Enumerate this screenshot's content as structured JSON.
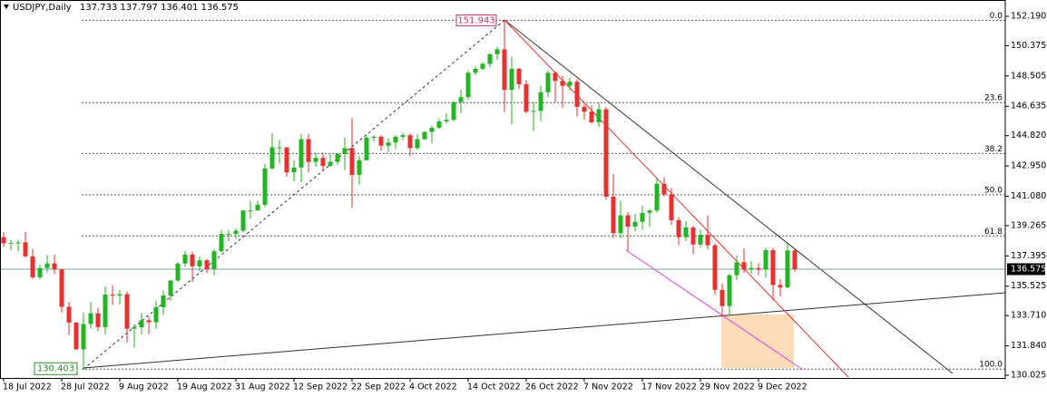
{
  "chart_data": {
    "type": "candlestick",
    "title": "USDJPY,Daily",
    "header_ohlc": "137.733 137.797 136.401 136.575",
    "categories": [
      "18 Jul 2022",
      null,
      null,
      null,
      null,
      null,
      null,
      null,
      "28 Jul 2022",
      null,
      null,
      null,
      null,
      null,
      null,
      null,
      "9 Aug 2022",
      null,
      null,
      null,
      null,
      null,
      null,
      null,
      "19 Aug 2022",
      null,
      null,
      null,
      null,
      null,
      null,
      null,
      "31 Aug 2022",
      null,
      null,
      null,
      null,
      null,
      null,
      null,
      "12 Sep 2022",
      null,
      null,
      null,
      null,
      null,
      null,
      null,
      "22 Sep 2022",
      null,
      null,
      null,
      null,
      null,
      null,
      null,
      "4 Oct 2022",
      null,
      null,
      null,
      null,
      null,
      null,
      null,
      "14 Oct 2022",
      null,
      null,
      null,
      null,
      null,
      null,
      null,
      "26 Oct 2022",
      null,
      null,
      null,
      null,
      null,
      null,
      null,
      "7 Nov 2022",
      null,
      null,
      null,
      null,
      null,
      null,
      null,
      "17 Nov 2022",
      null,
      null,
      null,
      null,
      null,
      null,
      null,
      "29 Nov 2022",
      null,
      null,
      null,
      null,
      null,
      null,
      null,
      "9 Dec 2022",
      null,
      null,
      null,
      null,
      null
    ],
    "open": [
      138.55,
      138.17,
      138.2,
      138.23,
      137.37,
      136.08,
      136.65,
      136.93,
      136.56,
      134.25,
      133.28,
      131.62,
      133.19,
      133.85,
      133.0,
      135.0,
      134.95,
      135.03,
      132.9,
      132.99,
      133.42,
      133.3,
      134.22,
      134.95,
      135.88,
      136.92,
      137.48,
      136.75,
      137.12,
      136.57,
      137.68,
      138.75,
      138.75,
      138.95,
      140.2,
      140.2,
      140.55,
      142.8,
      144.1,
      144.1,
      142.55,
      142.85,
      144.6,
      143.2,
      143.45,
      142.95,
      143.2,
      143.7,
      144.05,
      142.4,
      143.3,
      144.7,
      144.75,
      144.2,
      144.4,
      144.75,
      144.85,
      144.05,
      144.6,
      145.05,
      145.3,
      145.7,
      145.8,
      146.9,
      147.2,
      148.7,
      148.95,
      149.25,
      149.85,
      150.15,
      147.65,
      148.95,
      148.0,
      146.3,
      146.35,
      147.5,
      148.7,
      148.2,
      147.9,
      148.15,
      146.6,
      146.3,
      145.65,
      146.45,
      141.05,
      138.8,
      139.9,
      139.2,
      139.5,
      140.05,
      140.2,
      141.85,
      141.2,
      139.6,
      138.55,
      139.15,
      138.1,
      138.7,
      138.05,
      135.3,
      134.3,
      136.2,
      137.0,
      136.55,
      136.65,
      136.55,
      137.75,
      135.6,
      135.45,
      137.733
    ],
    "high": [
      138.87,
      138.38,
      138.4,
      138.88,
      137.83,
      136.85,
      137.45,
      137.46,
      136.58,
      134.55,
      133.3,
      133.9,
      134.55,
      134.2,
      135.5,
      135.58,
      135.3,
      135.2,
      133.18,
      133.87,
      133.65,
      134.6,
      135.25,
      135.9,
      137.0,
      137.7,
      137.66,
      137.36,
      137.22,
      137.8,
      139.0,
      139.0,
      139.1,
      140.22,
      140.8,
      140.8,
      143.07,
      144.99,
      144.55,
      144.1,
      143.3,
      144.95,
      144.95,
      143.75,
      143.78,
      143.7,
      143.75,
      144.7,
      145.9,
      143.55,
      144.8,
      144.85,
      144.85,
      144.65,
      144.85,
      145.0,
      144.95,
      144.9,
      145.1,
      145.45,
      145.85,
      146.2,
      146.95,
      147.65,
      148.85,
      149.1,
      149.35,
      149.9,
      150.3,
      151.943,
      149.7,
      149.0,
      148.25,
      146.9,
      147.9,
      148.85,
      148.8,
      148.5,
      148.4,
      148.3,
      146.75,
      146.7,
      146.85,
      146.6,
      142.45,
      140.8,
      140.1,
      140.0,
      140.5,
      140.3,
      142.2,
      142.25,
      141.6,
      139.8,
      139.55,
      139.25,
      139.0,
      139.9,
      138.15,
      135.7,
      136.3,
      137.4,
      137.85,
      137.1,
      136.95,
      137.9,
      137.9,
      135.95,
      138.15,
      137.797
    ],
    "low": [
      137.93,
      137.75,
      137.7,
      137.3,
      135.95,
      135.95,
      136.37,
      136.28,
      133.9,
      132.5,
      131.6,
      130.403,
      132.9,
      132.75,
      132.55,
      134.37,
      134.4,
      132.05,
      131.73,
      132.55,
      132.56,
      132.9,
      133.75,
      134.65,
      135.78,
      136.7,
      135.8,
      136.45,
      136.35,
      136.2,
      137.6,
      138.3,
      138.45,
      138.85,
      139.7,
      140.2,
      140.4,
      142.7,
      143.1,
      142.3,
      142.0,
      141.95,
      142.55,
      142.9,
      142.65,
      142.9,
      143.0,
      142.7,
      140.35,
      141.8,
      143.3,
      144.45,
      143.9,
      143.8,
      144.0,
      144.55,
      143.55,
      143.95,
      144.55,
      144.35,
      145.25,
      145.55,
      145.7,
      146.2,
      147.05,
      148.55,
      148.85,
      149.05,
      149.5,
      146.25,
      145.5,
      147.7,
      146.2,
      145.1,
      145.7,
      147.2,
      146.9,
      146.55,
      147.6,
      146.0,
      145.8,
      145.55,
      145.35,
      140.85,
      138.5,
      138.5,
      137.7,
      138.9,
      139.0,
      139.2,
      140.05,
      141.05,
      139.3,
      138.05,
      138.3,
      137.5,
      137.9,
      137.8,
      135.0,
      133.62,
      133.7,
      135.9,
      136.35,
      136.3,
      136.2,
      136.05,
      134.65,
      134.9,
      135.4,
      136.401
    ],
    "close": [
      138.17,
      138.2,
      138.23,
      137.37,
      136.08,
      136.65,
      136.93,
      136.56,
      134.25,
      133.28,
      131.62,
      133.19,
      133.85,
      133.0,
      135.0,
      134.95,
      135.03,
      132.9,
      132.99,
      133.42,
      133.3,
      134.22,
      134.95,
      135.88,
      136.92,
      137.48,
      136.75,
      137.12,
      136.57,
      137.68,
      138.75,
      138.75,
      138.95,
      140.2,
      140.2,
      140.55,
      142.8,
      144.1,
      144.1,
      142.55,
      142.85,
      144.6,
      143.2,
      143.45,
      142.95,
      143.2,
      143.7,
      144.05,
      142.4,
      143.3,
      144.7,
      144.75,
      144.2,
      144.4,
      144.75,
      144.85,
      144.05,
      144.6,
      145.05,
      145.3,
      145.7,
      145.8,
      146.9,
      147.2,
      148.7,
      148.95,
      149.25,
      149.85,
      150.15,
      147.65,
      148.95,
      148.0,
      146.3,
      146.35,
      147.5,
      148.7,
      148.2,
      147.9,
      148.15,
      146.6,
      146.3,
      145.65,
      146.45,
      141.05,
      138.8,
      139.9,
      139.2,
      139.5,
      140.05,
      140.2,
      141.85,
      141.2,
      139.6,
      138.55,
      139.15,
      138.1,
      138.7,
      138.05,
      135.3,
      134.3,
      136.2,
      137.0,
      136.55,
      136.65,
      136.55,
      137.75,
      135.6,
      135.45,
      137.733,
      136.575
    ],
    "up_color": "#22b422",
    "down_color": "#e8302f",
    "ylim": [
      129.857,
      153.197
    ],
    "yticks": [
      {
        "value": 152.19,
        "label": "152.190"
      },
      150.375,
      148.505,
      146.635,
      {
        "value": 144.82,
        "label": "144.820"
      },
      {
        "value": 142.95,
        "label": "142.950"
      },
      {
        "value": 141.08,
        "label": "141.080"
      },
      139.265,
      137.395,
      135.525,
      {
        "value": 133.71,
        "label": "133.710"
      },
      {
        "value": 131.84,
        "label": "131.840"
      },
      130.025
    ],
    "current_price": 136.575,
    "swing_high": 151.943,
    "swing_low": 130.403,
    "fib_levels": [
      {
        "value": 151.943,
        "label": "0.0"
      },
      {
        "value": 146.86,
        "label": "23.6"
      },
      {
        "value": 143.715,
        "label": "38.2"
      },
      {
        "value": 141.173,
        "label": "50.0"
      },
      {
        "value": 138.63,
        "label": "61.8"
      },
      {
        "value": 130.403,
        "label": "100.0"
      }
    ]
  }
}
